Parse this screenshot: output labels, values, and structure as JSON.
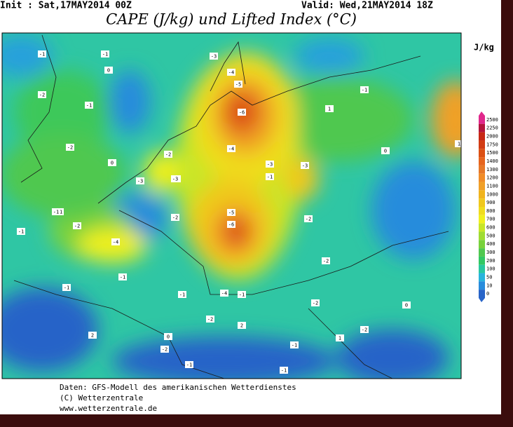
{
  "header": {
    "init": "Init : Sat,17MAY2014 00Z",
    "valid": "Valid: Wed,21MAY2014 18Z",
    "title": "CAPE (J/kg) und Lifted Index (°C)"
  },
  "colorbar": {
    "unit": "J/kg",
    "levels": [
      2500,
      2250,
      2000,
      1750,
      1500,
      1400,
      1300,
      1200,
      1100,
      1000,
      900,
      800,
      700,
      600,
      500,
      400,
      300,
      200,
      100,
      50,
      10,
      0
    ],
    "colors": [
      "#e0288c",
      "#b4143c",
      "#c82814",
      "#d23c14",
      "#dc5014",
      "#e6641e",
      "#e67828",
      "#f08c28",
      "#f0a028",
      "#f0b41e",
      "#f0c81e",
      "#f0dc1e",
      "#f0f01e",
      "#c8e628",
      "#a0dc32",
      "#78d23c",
      "#50c850",
      "#32c864",
      "#28c8a0",
      "#28b4dc",
      "#288cdc",
      "#2864c8"
    ]
  },
  "lifted_index_labels": [
    -1,
    -1,
    0,
    -3,
    -4,
    -5,
    -2,
    -1,
    -2,
    0,
    -1,
    -2,
    -2,
    -3,
    -3,
    -6,
    -4,
    -3,
    -3,
    -1,
    -2,
    -1,
    -1,
    -5,
    -6,
    -2,
    -1,
    -4,
    -1,
    -2,
    -1,
    0,
    -4,
    -1,
    -2,
    -2,
    0,
    -1,
    1,
    -3,
    2,
    -1,
    -2,
    -1,
    1,
    0,
    -1,
    -2,
    2,
    1
  ],
  "footer": {
    "line1": "Daten: GFS-Modell des amerikanischen Wetterdienstes",
    "line2": "(C) Wetterzentrale",
    "line3": "www.wetterzentrale.de"
  }
}
